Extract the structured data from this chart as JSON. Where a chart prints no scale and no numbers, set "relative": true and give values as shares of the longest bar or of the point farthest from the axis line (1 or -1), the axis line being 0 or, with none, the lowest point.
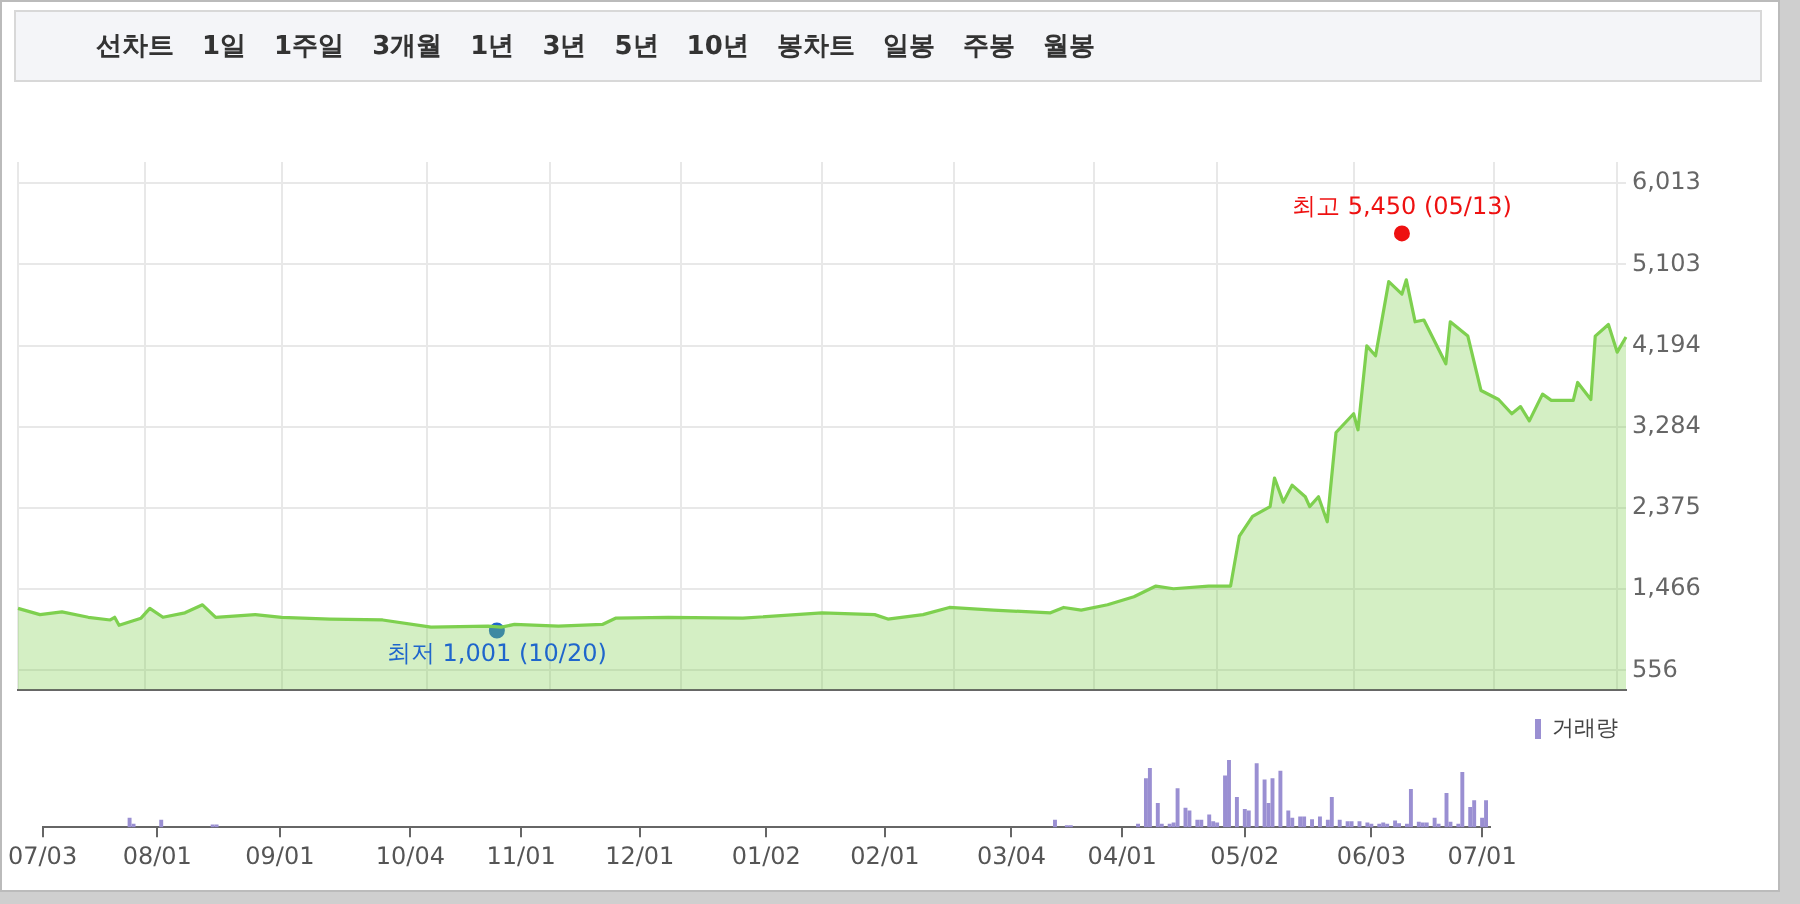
{
  "chart_data": [
    {
      "type": "area",
      "annotations": [
        "선차트",
        "1일",
        "1주일",
        "3개월",
        "1년",
        "3년",
        "5년",
        "10년",
        "봉차트",
        "일봉",
        "주봉",
        "월봉",
        {
          "text": "최고 5,450 (05/13)",
          "y": 5450
        },
        {
          "text": "최저 1,001 (10/20)",
          "y": 1001
        }
      ],
      "categories": [
        null,
        null,
        null,
        null,
        null,
        null,
        null,
        null,
        null,
        null,
        null,
        null,
        null,
        null,
        null,
        null,
        null,
        null,
        null,
        null,
        null,
        null,
        null,
        null,
        null,
        null,
        null,
        null,
        null,
        null,
        null,
        null,
        null,
        null,
        null,
        null,
        null,
        null,
        null,
        null,
        null,
        null,
        null,
        null,
        null,
        null,
        null,
        null,
        null,
        null,
        null,
        null,
        null,
        null,
        null,
        null,
        null,
        null,
        null,
        null,
        null,
        null,
        null,
        null,
        null,
        null,
        null,
        null,
        null,
        null,
        null,
        null,
        null,
        null,
        null,
        null,
        null,
        null,
        null,
        null,
        null,
        null,
        null,
        null,
        null,
        null,
        null,
        null,
        null,
        null,
        null,
        null,
        null,
        null,
        null,
        null,
        null,
        null,
        null,
        null,
        null,
        null,
        null,
        null,
        null,
        null,
        null,
        null,
        null,
        null,
        null,
        null,
        null,
        null,
        null,
        null,
        null,
        null,
        null,
        null,
        null,
        null,
        null,
        null,
        null,
        null,
        null,
        null,
        null,
        null,
        null,
        null,
        null,
        null,
        null,
        null,
        null,
        null,
        null,
        null,
        null,
        null,
        null,
        null,
        null,
        null,
        null,
        null,
        null,
        null,
        null,
        null,
        null,
        null,
        null,
        null,
        null,
        null,
        null,
        null,
        null,
        null,
        null,
        null,
        null,
        null,
        null,
        null,
        null,
        null,
        null,
        null,
        null,
        null,
        null,
        null,
        null,
        null,
        null,
        null,
        null,
        null,
        null,
        null,
        null,
        null,
        null,
        null,
        null,
        null,
        null,
        null,
        null,
        null,
        null,
        null,
        null,
        null,
        null,
        null,
        null,
        null,
        null,
        null,
        null,
        null,
        null,
        null,
        null,
        null,
        null,
        null,
        null,
        null,
        null,
        null,
        null,
        null,
        null,
        null,
        null,
        null,
        null,
        null,
        null,
        null,
        null,
        null,
        null,
        null,
        null,
        null,
        null,
        null,
        null,
        null,
        null,
        null,
        null,
        null,
        null,
        null,
        null,
        null,
        null,
        null,
        null,
        null,
        null,
        null,
        null,
        null,
        null,
        null,
        null,
        null,
        null,
        null,
        null,
        null,
        null,
        null,
        null,
        null,
        null,
        null,
        null,
        null,
        null,
        null,
        null,
        null,
        null,
        null,
        null,
        null,
        null,
        null,
        null,
        null,
        null,
        null,
        null,
        null,
        null,
        null,
        null,
        null,
        null,
        null,
        null,
        null,
        null,
        null,
        null,
        null,
        null,
        null,
        null,
        null,
        null,
        null,
        null,
        null,
        null,
        null,
        null,
        null,
        null,
        null,
        null,
        null,
        null,
        null,
        null,
        null,
        null,
        null,
        null,
        null,
        null,
        null,
        null,
        null,
        null,
        null,
        null,
        null,
        null,
        null,
        null,
        null,
        null,
        null,
        null,
        null,
        null,
        null,
        null,
        null,
        null,
        null,
        null,
        null,
        null,
        null,
        null,
        null,
        null,
        null,
        null,
        null,
        null,
        null,
        null,
        null,
        null,
        null,
        null,
        null,
        null,
        null,
        null,
        null,
        null,
        null,
        null
      ],
      "ylim": [
        340,
        6250
      ],
      "yticks": [
        {
          "value": 556,
          "label": "556"
        },
        {
          "value": 1466,
          "label": "1,466"
        },
        {
          "value": 2375,
          "label": "2,375"
        },
        {
          "value": 3284,
          "label": "3,284"
        },
        {
          "value": 4194,
          "label": "4,194"
        },
        {
          "value": 5103,
          "label": "5,103"
        },
        {
          "value": 6013,
          "label": "6,013"
        }
      ],
      "grid": true,
      "legend": false,
      "tick_labels": "y",
      "series": [
        {
          "color": "#7ed04f",
          "values": [
            1250,
            null,
            null,
            null,
            null,
            1180,
            null,
            null,
            null,
            null,
            1210,
            null,
            null,
            null,
            null,
            null,
            1150,
            null,
            null,
            null,
            null,
            1120,
            1150,
            1060,
            null,
            null,
            null,
            null,
            1140,
            null,
            1250,
            null,
            null,
            1150,
            null,
            null,
            null,
            null,
            1200,
            null,
            null,
            null,
            1290,
            null,
            null,
            1150,
            null,
            null,
            null,
            null,
            null,
            null,
            null,
            null,
            1180,
            null,
            null,
            null,
            null,
            null,
            1150,
            null,
            null,
            null,
            null,
            null,
            null,
            null,
            null,
            null,
            null,
            1130,
            null,
            null,
            null,
            null,
            null,
            null,
            null,
            null,
            null,
            null,
            null,
            1120,
            null,
            null,
            null,
            null,
            null,
            null,
            null,
            null,
            null,
            null,
            1040,
            null,
            null,
            null,
            null,
            null,
            null,
            null,
            null,
            null,
            null,
            null,
            null,
            1050,
            null,
            null,
            1040,
            null,
            null,
            1070,
            null,
            null,
            null,
            null,
            null,
            null,
            null,
            null,
            null,
            1050,
            null,
            null,
            null,
            null,
            null,
            null,
            null,
            null,
            null,
            1070,
            null,
            null,
            1140,
            null,
            null,
            null,
            null,
            null,
            null,
            null,
            null,
            null,
            null,
            null,
            1150,
            null,
            null,
            null,
            null,
            null,
            null,
            null,
            null,
            null,
            null,
            null,
            null,
            null,
            null,
            null,
            null,
            1140,
            null,
            null,
            null,
            null,
            null,
            null,
            null,
            null,
            null,
            null,
            null,
            null,
            null,
            null,
            null,
            null,
            null,
            1200,
            null,
            null,
            null,
            null,
            null,
            null,
            null,
            null,
            null,
            null,
            null,
            1180,
            null,
            null,
            1130,
            null,
            null,
            null,
            null,
            null,
            null,
            null,
            1180,
            null,
            null,
            null,
            null,
            null,
            1260,
            null,
            null,
            null,
            null,
            null,
            null,
            null,
            null,
            null,
            1230,
            null,
            null,
            null,
            null,
            null,
            null,
            null,
            null,
            null,
            null,
            null,
            null,
            1200,
            null,
            null,
            1260,
            null,
            null,
            null,
            1230,
            null,
            null,
            null,
            null,
            null,
            1290,
            null,
            null,
            null,
            null,
            null,
            1380,
            null,
            null,
            null,
            null,
            1500,
            null,
            null,
            null,
            1470,
            null,
            null,
            null,
            null,
            null,
            null,
            null,
            1500,
            null,
            null,
            null,
            null,
            1500,
            null,
            2060,
            null,
            null,
            2280,
            null,
            null,
            null,
            2390,
            2710,
            null,
            2440,
            null,
            2630,
            null,
            null,
            2500,
            2390,
            null,
            2500,
            null,
            2220,
            null,
            3220,
            null,
            null,
            null,
            3430,
            3250,
            null,
            4190,
            null,
            4080,
            null,
            null,
            4910,
            null,
            null,
            4770,
            4930,
            null,
            4460,
            null,
            4480,
            null,
            null,
            null,
            null,
            3990,
            4460,
            null,
            null,
            null,
            4300,
            null,
            null,
            3690,
            null,
            null,
            null,
            3590,
            null,
            null,
            3430,
            null,
            3510,
            null,
            3350,
            null,
            null,
            3650,
            null,
            3580,
            null,
            null,
            null,
            null,
            3580,
            3780,
            null,
            null,
            3590,
            4300,
            null,
            null,
            4430,
            null,
            4120,
            null,
            4290
          ]
        },
        {
          "type": "scatter",
          "color": "#ee1111",
          "values": [
            null,
            null,
            null,
            null,
            null,
            null,
            null,
            null,
            null,
            null,
            null,
            null,
            null,
            null,
            null,
            null,
            null,
            null,
            null,
            null,
            null,
            null,
            null,
            null,
            null,
            null,
            null,
            null,
            null,
            null,
            null,
            null,
            null,
            null,
            null,
            null,
            null,
            null,
            null,
            null,
            null,
            null,
            null,
            null,
            null,
            null,
            null,
            null,
            null,
            null,
            null,
            null,
            null,
            null,
            null,
            null,
            null,
            null,
            null,
            null,
            null,
            null,
            null,
            null,
            null,
            null,
            null,
            null,
            null,
            null,
            null,
            null,
            null,
            null,
            null,
            null,
            null,
            null,
            null,
            null,
            null,
            null,
            null,
            null,
            null,
            null,
            null,
            null,
            null,
            null,
            null,
            null,
            null,
            null,
            null,
            null,
            null,
            null,
            null,
            null,
            null,
            null,
            null,
            null,
            null,
            null,
            null,
            null,
            null,
            null,
            null,
            null,
            null,
            null,
            null,
            null,
            null,
            null,
            null,
            null,
            null,
            null,
            null,
            null,
            null,
            null,
            null,
            null,
            null,
            null,
            null,
            null,
            null,
            null,
            null,
            null,
            null,
            null,
            null,
            null,
            null,
            null,
            null,
            null,
            null,
            null,
            null,
            null,
            null,
            null,
            null,
            null,
            null,
            null,
            null,
            null,
            null,
            null,
            null,
            null,
            null,
            null,
            null,
            null,
            null,
            null,
            null,
            null,
            null,
            null,
            null,
            null,
            null,
            null,
            null,
            null,
            null,
            null,
            null,
            null,
            null,
            null,
            null,
            null,
            null,
            null,
            null,
            null,
            null,
            null,
            null,
            null,
            null,
            null,
            null,
            null,
            null,
            null,
            null,
            null,
            null,
            null,
            null,
            null,
            null,
            null,
            null,
            null,
            null,
            null,
            null,
            null,
            null,
            null,
            null,
            null,
            null,
            null,
            null,
            null,
            null,
            null,
            null,
            null,
            null,
            null,
            null,
            null,
            null,
            null,
            null,
            null,
            null,
            null,
            null,
            null,
            null,
            null,
            null,
            null,
            null,
            null,
            null,
            null,
            null,
            null,
            null,
            null,
            null,
            null,
            null,
            null,
            null,
            null,
            null,
            null,
            null,
            null,
            null,
            null,
            null,
            null,
            null,
            null,
            null,
            null,
            null,
            null,
            null,
            null,
            null,
            null,
            null,
            null,
            null,
            null,
            null,
            null,
            null,
            null,
            null,
            null,
            null,
            null,
            null,
            null,
            null,
            null,
            null,
            null,
            null,
            null,
            null,
            null,
            null,
            null,
            null,
            null,
            null,
            null,
            null,
            null,
            null,
            null,
            null,
            null,
            null,
            null,
            null,
            null,
            null,
            null,
            null,
            null,
            null,
            5450,
            null,
            null,
            null,
            null,
            null,
            null,
            null,
            null,
            null,
            null,
            null,
            null,
            null,
            null,
            null,
            null,
            null,
            null,
            null,
            null,
            null,
            null,
            null,
            null,
            null,
            null,
            null,
            null,
            null,
            null,
            null,
            null,
            null,
            null,
            null,
            null,
            null,
            null,
            null,
            null,
            null,
            null,
            null,
            null,
            null,
            null,
            null,
            null,
            null,
            null,
            null
          ]
        },
        {
          "type": "scatter",
          "color": "#1f66cc",
          "values": [
            null,
            null,
            null,
            null,
            null,
            null,
            null,
            null,
            null,
            null,
            null,
            null,
            null,
            null,
            null,
            null,
            null,
            null,
            null,
            null,
            null,
            null,
            null,
            null,
            null,
            null,
            null,
            null,
            null,
            null,
            null,
            null,
            null,
            null,
            null,
            null,
            null,
            null,
            null,
            null,
            null,
            null,
            null,
            null,
            null,
            null,
            null,
            null,
            null,
            null,
            null,
            null,
            null,
            null,
            null,
            null,
            null,
            null,
            null,
            null,
            null,
            null,
            null,
            null,
            null,
            null,
            null,
            null,
            null,
            null,
            null,
            null,
            null,
            null,
            null,
            null,
            null,
            null,
            null,
            null,
            null,
            null,
            null,
            null,
            null,
            null,
            null,
            null,
            null,
            null,
            null,
            null,
            null,
            null,
            null,
            null,
            null,
            null,
            null,
            null,
            null,
            null,
            null,
            null,
            null,
            null,
            null,
            null,
            null,
            1001,
            null,
            null,
            null,
            null,
            null,
            null,
            null,
            null,
            null,
            null,
            null,
            null,
            null,
            null,
            null,
            null,
            null,
            null,
            null,
            null,
            null,
            null,
            null,
            null,
            null,
            null,
            null,
            null,
            null,
            null,
            null,
            null,
            null,
            null,
            null,
            null,
            null,
            null,
            null,
            null,
            null,
            null,
            null,
            null,
            null,
            null,
            null,
            null,
            null,
            null,
            null,
            null,
            null,
            null,
            null,
            null,
            null,
            null,
            null,
            null,
            null,
            null,
            null,
            null,
            null,
            null,
            null,
            null,
            null,
            null,
            null,
            null,
            null,
            null,
            null,
            null,
            null,
            null,
            null,
            null,
            null,
            null,
            null,
            null,
            null,
            null,
            null,
            null,
            null,
            null,
            null,
            null,
            null,
            null,
            null,
            null,
            null,
            null,
            null,
            null,
            null,
            null,
            null,
            null,
            null,
            null,
            null,
            null,
            null,
            null,
            null,
            null,
            null,
            null,
            null,
            null,
            null,
            null,
            null,
            null,
            null,
            null,
            null,
            null,
            null,
            null,
            null,
            null,
            null,
            null,
            null,
            null,
            null,
            null,
            null,
            null,
            null,
            null,
            null,
            null,
            null,
            null,
            null,
            null,
            null,
            null,
            null,
            null,
            null,
            null,
            null,
            null,
            null,
            null,
            null,
            null,
            null,
            null,
            null,
            null,
            null,
            null,
            null,
            null,
            null,
            null,
            null,
            null,
            null,
            null,
            null,
            null,
            null,
            null,
            null,
            null,
            null,
            null,
            null,
            null,
            null,
            null,
            null,
            null,
            null,
            null,
            null,
            null,
            null,
            null,
            null,
            null,
            null,
            null,
            null,
            null,
            null,
            null,
            null,
            null,
            null,
            null,
            null,
            null,
            null,
            null,
            null,
            null,
            null,
            null,
            null,
            null,
            null,
            null,
            null,
            null,
            null,
            null,
            null,
            null,
            null,
            null,
            null,
            null,
            null,
            null,
            null,
            null,
            null,
            null,
            null,
            null,
            null,
            null,
            null,
            null,
            null,
            null,
            null,
            null,
            null,
            null,
            null,
            null,
            null,
            null,
            null,
            null,
            null,
            null,
            null,
            null,
            null,
            null,
            null,
            null,
            null
          ]
        }
      ]
    },
    {
      "type": "bar",
      "relative": true,
      "categories": [
        "07/03",
        null,
        null,
        null,
        null,
        null,
        null,
        null,
        null,
        null,
        null,
        null,
        null,
        null,
        null,
        null,
        null,
        null,
        null,
        null,
        null,
        null,
        null,
        null,
        null,
        null,
        null,
        null,
        null,
        "08/01",
        null,
        null,
        null,
        null,
        null,
        null,
        null,
        null,
        null,
        null,
        null,
        null,
        null,
        null,
        null,
        null,
        null,
        null,
        null,
        null,
        null,
        null,
        null,
        null,
        null,
        null,
        null,
        null,
        null,
        null,
        "09/01",
        null,
        null,
        null,
        null,
        null,
        null,
        null,
        null,
        null,
        null,
        null,
        null,
        null,
        null,
        null,
        null,
        null,
        null,
        null,
        null,
        null,
        null,
        null,
        null,
        null,
        null,
        null,
        null,
        null,
        null,
        null,
        null,
        "10/04",
        null,
        null,
        null,
        null,
        null,
        null,
        null,
        null,
        null,
        null,
        null,
        null,
        null,
        null,
        null,
        null,
        null,
        null,
        null,
        null,
        null,
        null,
        null,
        null,
        null,
        null,
        null,
        "11/01",
        null,
        null,
        null,
        null,
        null,
        null,
        null,
        null,
        null,
        null,
        null,
        null,
        null,
        null,
        null,
        null,
        null,
        null,
        null,
        null,
        null,
        null,
        null,
        null,
        null,
        null,
        null,
        null,
        null,
        "12/01",
        null,
        null,
        null,
        null,
        null,
        null,
        null,
        null,
        null,
        null,
        null,
        null,
        null,
        null,
        null,
        null,
        null,
        null,
        null,
        null,
        null,
        null,
        null,
        null,
        null,
        null,
        null,
        null,
        null,
        null,
        null,
        "01/02",
        null,
        null,
        null,
        null,
        null,
        null,
        null,
        null,
        null,
        null,
        null,
        null,
        null,
        null,
        null,
        null,
        null,
        null,
        null,
        null,
        null,
        null,
        null,
        null,
        null,
        null,
        null,
        null,
        null,
        "02/01",
        null,
        null,
        null,
        null,
        null,
        null,
        null,
        null,
        null,
        null,
        null,
        null,
        null,
        null,
        null,
        null,
        null,
        null,
        null,
        null,
        null,
        null,
        null,
        null,
        null,
        null,
        null,
        null,
        null,
        null,
        null,
        "03/04",
        null,
        null,
        null,
        null,
        null,
        null,
        null,
        null,
        null,
        null,
        null,
        null,
        null,
        null,
        null,
        null,
        null,
        null,
        null,
        null,
        null,
        null,
        null,
        null,
        null,
        null,
        null,
        "04/01",
        null,
        null,
        null,
        null,
        null,
        null,
        null,
        null,
        null,
        null,
        null,
        null,
        null,
        null,
        null,
        null,
        null,
        null,
        null,
        null,
        null,
        null,
        null,
        null,
        null,
        null,
        null,
        null,
        null,
        null,
        "05/02",
        null,
        null,
        null,
        null,
        null,
        null,
        null,
        null,
        null,
        null,
        null,
        null,
        null,
        null,
        null,
        null,
        null,
        null,
        null,
        null,
        null,
        null,
        null,
        null,
        null,
        null,
        null,
        null,
        null,
        null,
        null,
        "06/03",
        null,
        null,
        null,
        null,
        null,
        null,
        null,
        null,
        null,
        null,
        null,
        null,
        null,
        null,
        null,
        null,
        null,
        null,
        null,
        null,
        null,
        null,
        null,
        null,
        null,
        null,
        null,
        "07/01",
        null,
        null
      ],
      "legend": "top right",
      "series": [
        {
          "name": "거래량",
          "color": "#9a8fd2",
          "values": [
            null,
            null,
            null,
            null,
            null,
            null,
            null,
            null,
            null,
            null,
            null,
            null,
            null,
            null,
            null,
            null,
            null,
            null,
            null,
            null,
            null,
            null,
            0.13,
            0.04,
            null,
            null,
            null,
            null,
            null,
            null,
            0.1,
            null,
            null,
            null,
            null,
            null,
            null,
            null,
            null,
            null,
            null,
            null,
            null,
            0.03,
            0.03,
            null,
            null,
            null,
            null,
            null,
            null,
            null,
            null,
            null,
            null,
            null,
            null,
            null,
            null,
            null,
            null,
            null,
            null,
            null,
            null,
            null,
            null,
            null,
            null,
            null,
            null,
            null,
            null,
            null,
            null,
            null,
            null,
            null,
            null,
            null,
            null,
            null,
            null,
            null,
            null,
            null,
            null,
            null,
            null,
            null,
            null,
            null,
            null,
            null,
            null,
            null,
            null,
            null,
            null,
            null,
            null,
            null,
            null,
            null,
            null,
            null,
            null,
            null,
            null,
            null,
            null,
            null,
            null,
            null,
            null,
            null,
            null,
            null,
            null,
            null,
            null,
            null,
            null,
            null,
            null,
            null,
            null,
            null,
            null,
            null,
            null,
            null,
            null,
            null,
            null,
            null,
            null,
            null,
            null,
            null,
            null,
            null,
            null,
            null,
            null,
            null,
            null,
            null,
            null,
            null,
            null,
            null,
            null,
            null,
            null,
            null,
            null,
            null,
            null,
            null,
            null,
            null,
            null,
            null,
            null,
            null,
            null,
            null,
            null,
            null,
            null,
            null,
            null,
            null,
            null,
            null,
            null,
            null,
            null,
            null,
            null,
            null,
            null,
            null,
            null,
            null,
            null,
            null,
            null,
            null,
            null,
            null,
            null,
            null,
            null,
            null,
            null,
            null,
            null,
            null,
            null,
            null,
            null,
            null,
            null,
            null,
            null,
            null,
            null,
            null,
            null,
            null,
            null,
            null,
            null,
            null,
            null,
            null,
            null,
            null,
            null,
            null,
            null,
            null,
            null,
            null,
            null,
            null,
            null,
            null,
            null,
            null,
            null,
            null,
            null,
            null,
            null,
            null,
            null,
            null,
            null,
            null,
            null,
            null,
            null,
            null,
            null,
            null,
            null,
            null,
            null,
            null,
            null,
            null,
            null,
            null,
            0.1,
            null,
            null,
            0.02,
            0.02,
            null,
            null,
            null,
            null,
            null,
            null,
            null,
            null,
            null,
            null,
            null,
            null,
            null,
            null,
            null,
            null,
            0.04,
            null,
            0.72,
            0.87,
            null,
            0.35,
            0.04,
            null,
            0.04,
            0.06,
            0.57,
            null,
            0.28,
            0.24,
            null,
            0.1,
            0.1,
            null,
            0.18,
            0.08,
            0.06,
            null,
            0.76,
            1,
            null,
            0.44,
            null,
            0.26,
            0.24,
            null,
            0.94,
            null,
            0.7,
            0.35,
            0.72,
            null,
            0.83,
            null,
            0.24,
            0.13,
            null,
            0.15,
            0.15,
            null,
            0.11,
            null,
            0.15,
            null,
            0.1,
            0.44,
            null,
            0.1,
            null,
            0.08,
            0.08,
            null,
            0.08,
            null,
            0.06,
            0.04,
            null,
            0.04,
            0.06,
            0.04,
            null,
            0.09,
            0.05,
            null,
            0.04,
            0.56,
            null,
            0.07,
            0.06,
            0.06,
            null,
            0.13,
            0.04,
            null,
            0.5,
            0.07,
            null,
            0.04,
            0.81,
            null,
            0.29,
            0.39,
            null,
            0.13,
            0.39,
            null
          ]
        }
      ]
    }
  ]
}
